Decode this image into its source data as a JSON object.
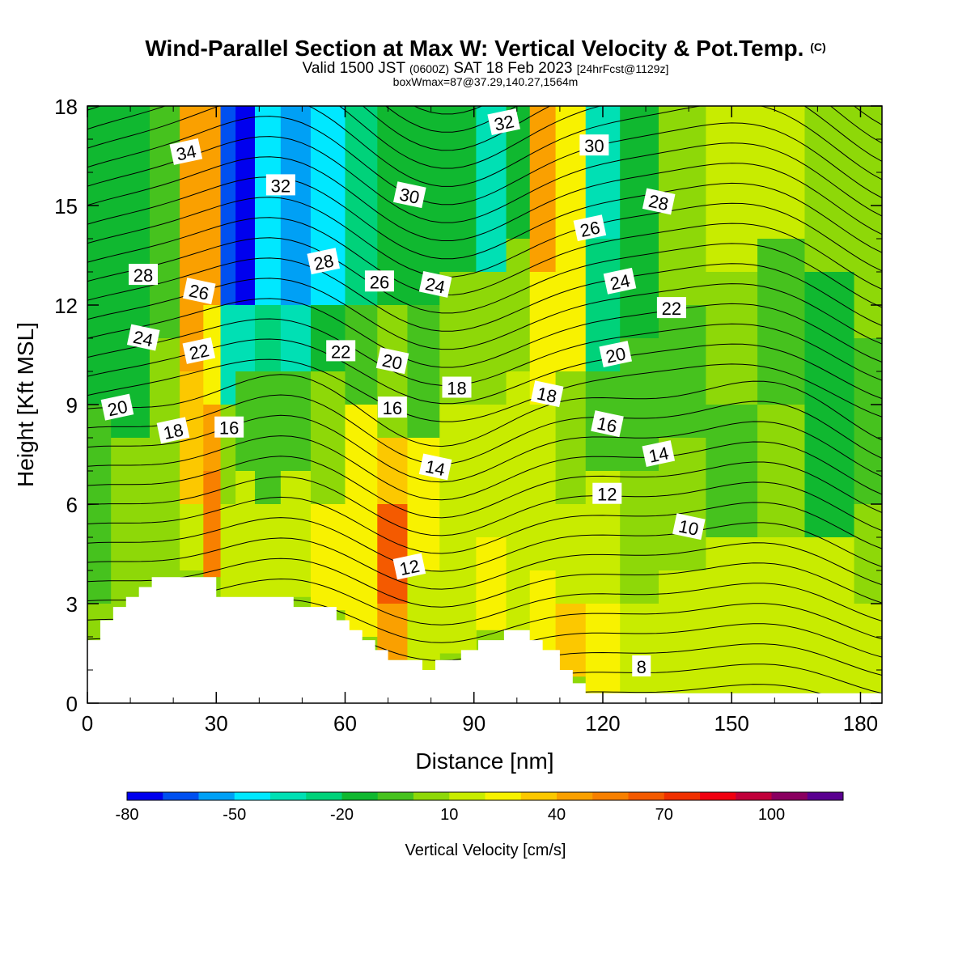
{
  "title": {
    "main": "Wind-Parallel Section at Max W: Vertical Velocity & Pot.Temp.",
    "copyright": "(C)",
    "valid_prefix": "Valid 1500 JST",
    "valid_utc": "(0600Z)",
    "valid_date": "SAT 18 Feb 2023",
    "forecast": "[24hrFcst@1129z]",
    "box": "boxWmax=87@37.29,140.27,1564m"
  },
  "chart_data": {
    "type": "heatmap",
    "xlabel": "Distance [nm]",
    "ylabel": "Height [Kft MSL]",
    "xlim": [
      0,
      185
    ],
    "ylim": [
      0,
      18
    ],
    "x_ticks": [
      "0",
      "30",
      "60",
      "90",
      "120",
      "150",
      "180"
    ],
    "y_ticks": [
      "0",
      "3",
      "6",
      "9",
      "12",
      "15",
      "18"
    ],
    "colorbar": {
      "title": "Vertical Velocity [cm/s]",
      "levels": [
        -80,
        -70,
        -60,
        -50,
        -40,
        -30,
        -20,
        -10,
        0,
        10,
        20,
        30,
        40,
        50,
        60,
        70,
        80,
        90,
        100,
        110,
        120
      ],
      "labels": [
        "-80",
        "-50",
        "-20",
        "10",
        "40",
        "70",
        "100"
      ],
      "colors": [
        "#0000ee",
        "#0050f0",
        "#00a0f5",
        "#00e8ff",
        "#00e0b4",
        "#00d27a",
        "#10b830",
        "#46c21e",
        "#8ed808",
        "#c8ec00",
        "#f8f200",
        "#fcc800",
        "#faa000",
        "#f88000",
        "#f45a00",
        "#f03000",
        "#f00010",
        "#c0003a",
        "#8a0060",
        "#5a0090"
      ]
    },
    "vertical_velocity_columns": [
      {
        "x": 0,
        "bands": [
          [
            3,
            9,
            -10
          ],
          [
            9,
            18,
            -20
          ]
        ]
      },
      {
        "x": 11,
        "bands": [
          [
            3,
            8,
            0
          ],
          [
            8,
            18,
            -20
          ]
        ]
      },
      {
        "x": 18,
        "bands": [
          [
            3,
            7,
            0
          ],
          [
            7,
            11,
            0
          ],
          [
            11,
            18,
            -10
          ]
        ]
      },
      {
        "x": 25,
        "bands": [
          [
            4,
            6,
            10
          ],
          [
            6,
            10,
            30
          ],
          [
            10,
            18,
            40
          ]
        ]
      },
      {
        "x": 29,
        "bands": [
          [
            3.8,
            7,
            50
          ],
          [
            7,
            9,
            40
          ],
          [
            9,
            12,
            20
          ],
          [
            12,
            18,
            40
          ]
        ]
      },
      {
        "x": 33,
        "bands": [
          [
            3.2,
            6,
            10
          ],
          [
            6,
            9,
            0
          ],
          [
            9,
            12,
            -40
          ],
          [
            12,
            18,
            -70
          ]
        ]
      },
      {
        "x": 36,
        "bands": [
          [
            3.2,
            7,
            10
          ],
          [
            7,
            10,
            -10
          ],
          [
            10,
            12,
            -40
          ],
          [
            12,
            18,
            -80
          ]
        ]
      },
      {
        "x": 42,
        "bands": [
          [
            3.2,
            6,
            10
          ],
          [
            6,
            10,
            -10
          ],
          [
            10,
            12,
            -30
          ],
          [
            12,
            18,
            -50
          ]
        ]
      },
      {
        "x": 48,
        "bands": [
          [
            3.2,
            7,
            10
          ],
          [
            7,
            10,
            -10
          ],
          [
            10,
            12,
            -40
          ],
          [
            12,
            18,
            -60
          ]
        ]
      },
      {
        "x": 56,
        "bands": [
          [
            2.8,
            6,
            20
          ],
          [
            6,
            10,
            0
          ],
          [
            10,
            12,
            -20
          ],
          [
            12,
            18,
            -50
          ]
        ]
      },
      {
        "x": 64,
        "bands": [
          [
            2,
            5,
            20
          ],
          [
            5,
            9,
            20
          ],
          [
            9,
            12,
            -10
          ],
          [
            12,
            18,
            -30
          ]
        ]
      },
      {
        "x": 71,
        "bands": [
          [
            1.3,
            3,
            40
          ],
          [
            3,
            6,
            60
          ],
          [
            6,
            8,
            30
          ],
          [
            8,
            12,
            0
          ],
          [
            12,
            18,
            -20
          ]
        ]
      },
      {
        "x": 78,
        "bands": [
          [
            1,
            4,
            10
          ],
          [
            4,
            8,
            20
          ],
          [
            8,
            12,
            -10
          ],
          [
            12,
            18,
            -20
          ]
        ]
      },
      {
        "x": 86,
        "bands": [
          [
            1.5,
            4,
            10
          ],
          [
            4,
            9,
            10
          ],
          [
            9,
            13,
            0
          ],
          [
            13,
            18,
            -20
          ]
        ]
      },
      {
        "x": 95,
        "bands": [
          [
            2.2,
            5,
            20
          ],
          [
            5,
            9,
            10
          ],
          [
            9,
            13,
            0
          ],
          [
            13,
            18,
            -40
          ]
        ]
      },
      {
        "x": 100,
        "bands": [
          [
            2.2,
            5,
            10
          ],
          [
            5,
            10,
            10
          ],
          [
            10,
            14,
            0
          ],
          [
            14,
            18,
            -20
          ]
        ]
      },
      {
        "x": 106,
        "bands": [
          [
            1.5,
            4,
            20
          ],
          [
            4,
            9,
            10
          ],
          [
            9,
            13,
            20
          ],
          [
            13,
            18,
            40
          ]
        ]
      },
      {
        "x": 112,
        "bands": [
          [
            0.8,
            3,
            30
          ],
          [
            3,
            6,
            10
          ],
          [
            6,
            10,
            0
          ],
          [
            10,
            18,
            20
          ]
        ]
      },
      {
        "x": 120,
        "bands": [
          [
            0.3,
            3,
            20
          ],
          [
            3,
            7,
            10
          ],
          [
            7,
            10,
            -10
          ],
          [
            10,
            14,
            -30
          ],
          [
            14,
            18,
            -40
          ]
        ]
      },
      {
        "x": 128,
        "bands": [
          [
            0.3,
            3,
            10
          ],
          [
            3,
            7,
            0
          ],
          [
            7,
            11,
            -10
          ],
          [
            11,
            14,
            -20
          ],
          [
            14,
            18,
            -20
          ]
        ]
      },
      {
        "x": 138,
        "bands": [
          [
            0.3,
            4,
            10
          ],
          [
            4,
            8,
            0
          ],
          [
            8,
            12,
            -10
          ],
          [
            12,
            18,
            0
          ]
        ]
      },
      {
        "x": 150,
        "bands": [
          [
            0.3,
            5,
            10
          ],
          [
            5,
            9,
            -10
          ],
          [
            9,
            13,
            0
          ],
          [
            13,
            18,
            10
          ]
        ]
      },
      {
        "x": 162,
        "bands": [
          [
            0.3,
            5,
            10
          ],
          [
            5,
            9,
            0
          ],
          [
            9,
            14,
            -10
          ],
          [
            14,
            18,
            10
          ]
        ]
      },
      {
        "x": 172,
        "bands": [
          [
            0.3,
            5,
            10
          ],
          [
            5,
            8,
            -20
          ],
          [
            8,
            13,
            -20
          ],
          [
            13,
            18,
            0
          ]
        ]
      },
      {
        "x": 185,
        "bands": [
          [
            0.3,
            3,
            10
          ],
          [
            3,
            6,
            0
          ],
          [
            6,
            11,
            -10
          ],
          [
            11,
            18,
            0
          ]
        ]
      }
    ],
    "terrain": [
      [
        0,
        1.9
      ],
      [
        3,
        1.9
      ],
      [
        3,
        2.5
      ],
      [
        6,
        2.5
      ],
      [
        6,
        2.9
      ],
      [
        9,
        2.9
      ],
      [
        9,
        3.2
      ],
      [
        12,
        3.2
      ],
      [
        12,
        3.5
      ],
      [
        15,
        3.5
      ],
      [
        15,
        3.8
      ],
      [
        30,
        3.8
      ],
      [
        30,
        3.2
      ],
      [
        48,
        3.2
      ],
      [
        48,
        2.9
      ],
      [
        58,
        2.9
      ],
      [
        58,
        2.5
      ],
      [
        61,
        2.5
      ],
      [
        61,
        2.2
      ],
      [
        64,
        2.2
      ],
      [
        64,
        1.9
      ],
      [
        67,
        1.9
      ],
      [
        67,
        1.6
      ],
      [
        70,
        1.6
      ],
      [
        70,
        1.3
      ],
      [
        78,
        1.3
      ],
      [
        78,
        1.0
      ],
      [
        81,
        1.0
      ],
      [
        81,
        1.3
      ],
      [
        87,
        1.3
      ],
      [
        87,
        1.6
      ],
      [
        91,
        1.6
      ],
      [
        91,
        1.9
      ],
      [
        97,
        1.9
      ],
      [
        97,
        2.2
      ],
      [
        103,
        2.2
      ],
      [
        103,
        1.9
      ],
      [
        106,
        1.9
      ],
      [
        106,
        1.6
      ],
      [
        110,
        1.6
      ],
      [
        110,
        1.0
      ],
      [
        113,
        1.0
      ],
      [
        113,
        0.6
      ],
      [
        116,
        0.6
      ],
      [
        116,
        0.3
      ],
      [
        120,
        0.3
      ],
      [
        120,
        0.0
      ]
    ],
    "theta_levels": [
      8,
      10,
      12,
      14,
      16,
      18,
      20,
      22,
      24,
      26,
      28,
      30,
      32,
      34
    ],
    "theta_label_positions": [
      {
        "label": "34",
        "x": 23,
        "y": 16.6
      },
      {
        "label": "32",
        "x": 45,
        "y": 15.6
      },
      {
        "label": "30",
        "x": 75,
        "y": 15.3
      },
      {
        "label": "32",
        "x": 97,
        "y": 17.5
      },
      {
        "label": "30",
        "x": 118,
        "y": 16.8
      },
      {
        "label": "28",
        "x": 133,
        "y": 15.1
      },
      {
        "label": "26",
        "x": 117,
        "y": 14.3
      },
      {
        "label": "28",
        "x": 13,
        "y": 12.9
      },
      {
        "label": "26",
        "x": 26,
        "y": 12.4
      },
      {
        "label": "28",
        "x": 55,
        "y": 13.3
      },
      {
        "label": "26",
        "x": 68,
        "y": 12.7
      },
      {
        "label": "24",
        "x": 81,
        "y": 12.6
      },
      {
        "label": "24",
        "x": 124,
        "y": 12.7
      },
      {
        "label": "22",
        "x": 136,
        "y": 11.9
      },
      {
        "label": "24",
        "x": 13,
        "y": 11.0
      },
      {
        "label": "22",
        "x": 26,
        "y": 10.6
      },
      {
        "label": "22",
        "x": 59,
        "y": 10.6
      },
      {
        "label": "20",
        "x": 71,
        "y": 10.3
      },
      {
        "label": "20",
        "x": 123,
        "y": 10.5
      },
      {
        "label": "18",
        "x": 86,
        "y": 9.5
      },
      {
        "label": "18",
        "x": 107,
        "y": 9.3
      },
      {
        "label": "20",
        "x": 7,
        "y": 8.9
      },
      {
        "label": "16",
        "x": 71,
        "y": 8.9
      },
      {
        "label": "16",
        "x": 121,
        "y": 8.4
      },
      {
        "label": "18",
        "x": 20,
        "y": 8.2
      },
      {
        "label": "16",
        "x": 33,
        "y": 8.3
      },
      {
        "label": "14",
        "x": 81,
        "y": 7.1
      },
      {
        "label": "14",
        "x": 133,
        "y": 7.5
      },
      {
        "label": "12",
        "x": 121,
        "y": 6.3
      },
      {
        "label": "10",
        "x": 140,
        "y": 5.3
      },
      {
        "label": "12",
        "x": 75,
        "y": 4.1
      },
      {
        "label": "8",
        "x": 129,
        "y": 1.1
      }
    ]
  }
}
